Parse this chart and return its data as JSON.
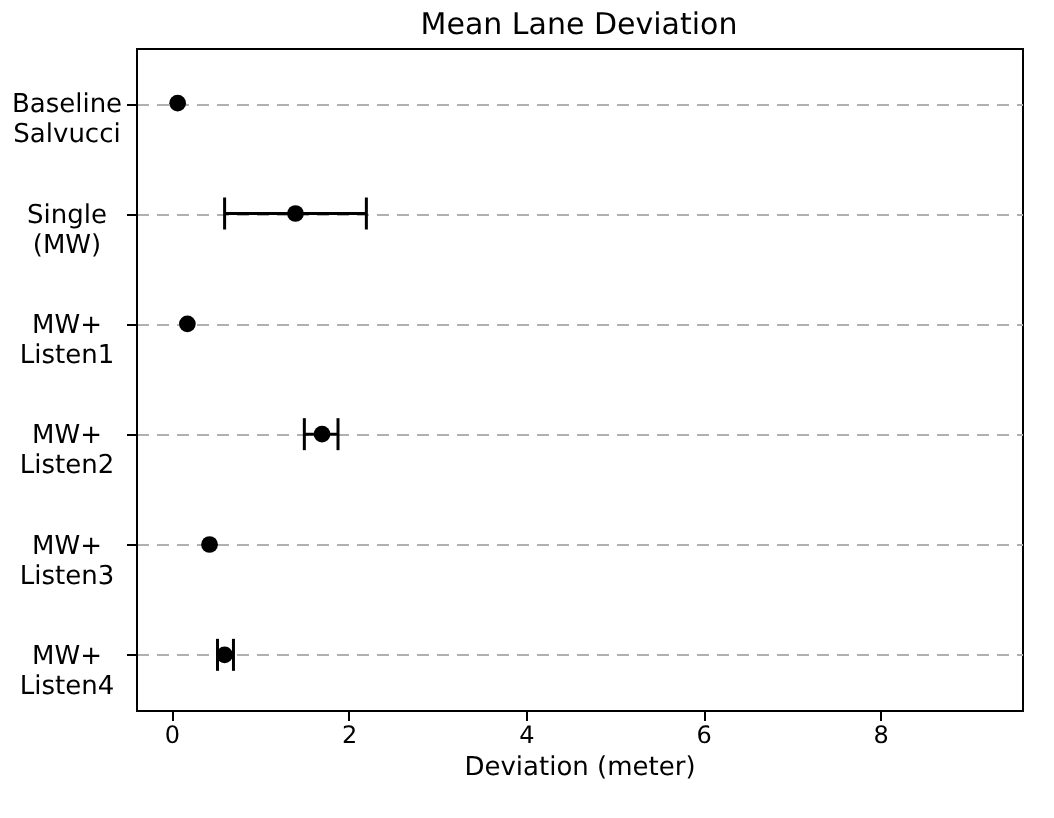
{
  "chart_data": {
    "type": "scatter",
    "title": "Mean Lane Deviation",
    "xlabel": "Deviation (meter)",
    "orientation": "horizontal",
    "categories": [
      "Baseline\nSalvucci",
      "Single\n(MW)",
      "MW+\nListen1",
      "MW+\nListen2",
      "MW+\nListen3",
      "MW+\nListen4"
    ],
    "values": [
      0.07,
      1.4,
      0.18,
      1.7,
      0.43,
      0.6
    ],
    "errors": [
      null,
      [
        0.6,
        2.2
      ],
      null,
      [
        1.5,
        1.88
      ],
      null,
      [
        0.52,
        0.7
      ]
    ],
    "color": "#000000",
    "marker": "circle",
    "xlim": [
      -0.4,
      9.6
    ],
    "xticks": [
      0,
      2,
      4,
      6,
      8
    ],
    "grid": "y"
  }
}
